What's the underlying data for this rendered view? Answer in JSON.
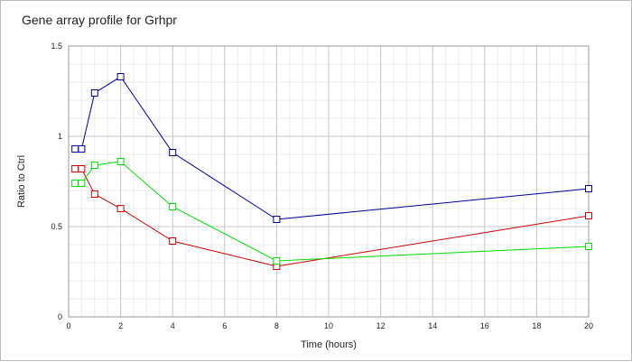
{
  "chart_data": {
    "type": "line",
    "title": "Gene array profile for Grhpr",
    "xlabel": "Time (hours)",
    "ylabel": "Ratio to Ctrl",
    "xlim": [
      0,
      20
    ],
    "ylim": [
      0,
      1.5
    ],
    "x_ticks": [
      0,
      2,
      4,
      6,
      8,
      10,
      12,
      14,
      16,
      18,
      20
    ],
    "x_tick_labels": [
      "0",
      "2",
      "4",
      "6",
      "8",
      "10",
      "12",
      "14",
      "16",
      "18",
      "20"
    ],
    "y_ticks": [
      0,
      0.5,
      1,
      1.5
    ],
    "y_tick_labels": [
      "0",
      "0.5",
      "1",
      "1.5"
    ],
    "grid": true,
    "legend": "none",
    "marker": "square",
    "series": [
      {
        "color": "#000099",
        "x": [
          0.25,
          0.5,
          1,
          2,
          4,
          8,
          20
        ],
        "y": [
          0.93,
          0.93,
          1.24,
          1.33,
          0.91,
          0.54,
          0.71
        ]
      },
      {
        "color": "#cc0000",
        "x": [
          0.25,
          0.5,
          1,
          2,
          4,
          8,
          20
        ],
        "y": [
          0.82,
          0.82,
          0.68,
          0.6,
          0.42,
          0.28,
          0.56
        ]
      },
      {
        "color": "#00dd00",
        "x": [
          0.25,
          0.5,
          1,
          2,
          4,
          8,
          20
        ],
        "y": [
          0.74,
          0.74,
          0.84,
          0.86,
          0.61,
          0.31,
          0.39
        ]
      }
    ]
  }
}
